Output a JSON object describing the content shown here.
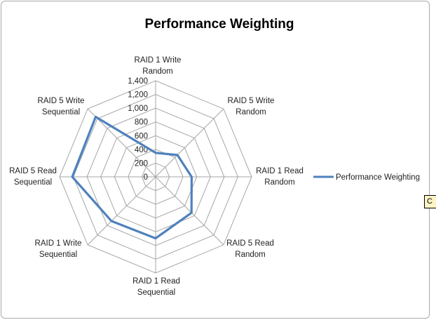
{
  "title": "Performance Weighting",
  "legend": {
    "label": "Performance Weighting"
  },
  "clipboard_button": {
    "label": "C"
  },
  "chart_data": {
    "type": "radar",
    "title": "Performance Weighting",
    "categories": [
      "RAID 1 Write Random",
      "RAID 5 Write Random",
      "RAID 1 Read Random",
      "RAID 5 Read Random",
      "RAID 1 Read Sequential",
      "RAID 1 Write Sequential",
      "RAID 5 Read Sequential",
      "RAID 5 Write Sequential"
    ],
    "series": [
      {
        "name": "Performance Weighting",
        "color": "#4F81BD",
        "values": [
          350,
          450,
          525,
          740,
          895,
          910,
          1215,
          1235
        ]
      }
    ],
    "axis": {
      "min": 0,
      "max": 1400,
      "step": 200,
      "tick_labels": [
        "0",
        "200",
        "400",
        "600",
        "800",
        "1,000",
        "1,200",
        "1,400"
      ]
    },
    "grid_color": "#a6a6a6",
    "grid": true,
    "legend_position": "right"
  }
}
